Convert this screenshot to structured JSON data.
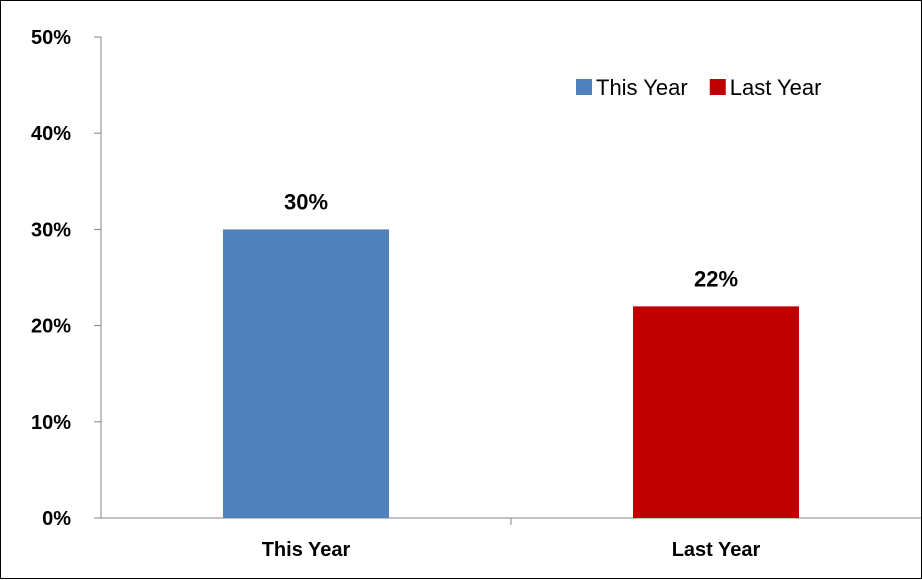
{
  "chart_data": {
    "type": "bar",
    "categories": [
      "This Year",
      "Last Year"
    ],
    "values": [
      0.3,
      0.22
    ],
    "data_labels": [
      "30%",
      "22%"
    ],
    "colors": [
      "#4F81BD",
      "#C00000"
    ],
    "ylim": [
      0,
      0.5
    ],
    "yticks": [
      0,
      0.1,
      0.2,
      0.3,
      0.4,
      0.5
    ],
    "ytick_labels": [
      "0%",
      "10%",
      "20%",
      "30%",
      "40%",
      "50%"
    ],
    "legend": {
      "placement": "top-right",
      "entries": [
        {
          "label": "This Year",
          "color": "#4F81BD"
        },
        {
          "label": "Last Year",
          "color": "#C00000"
        }
      ]
    },
    "grid": false,
    "title": "",
    "xlabel": "",
    "ylabel": ""
  }
}
